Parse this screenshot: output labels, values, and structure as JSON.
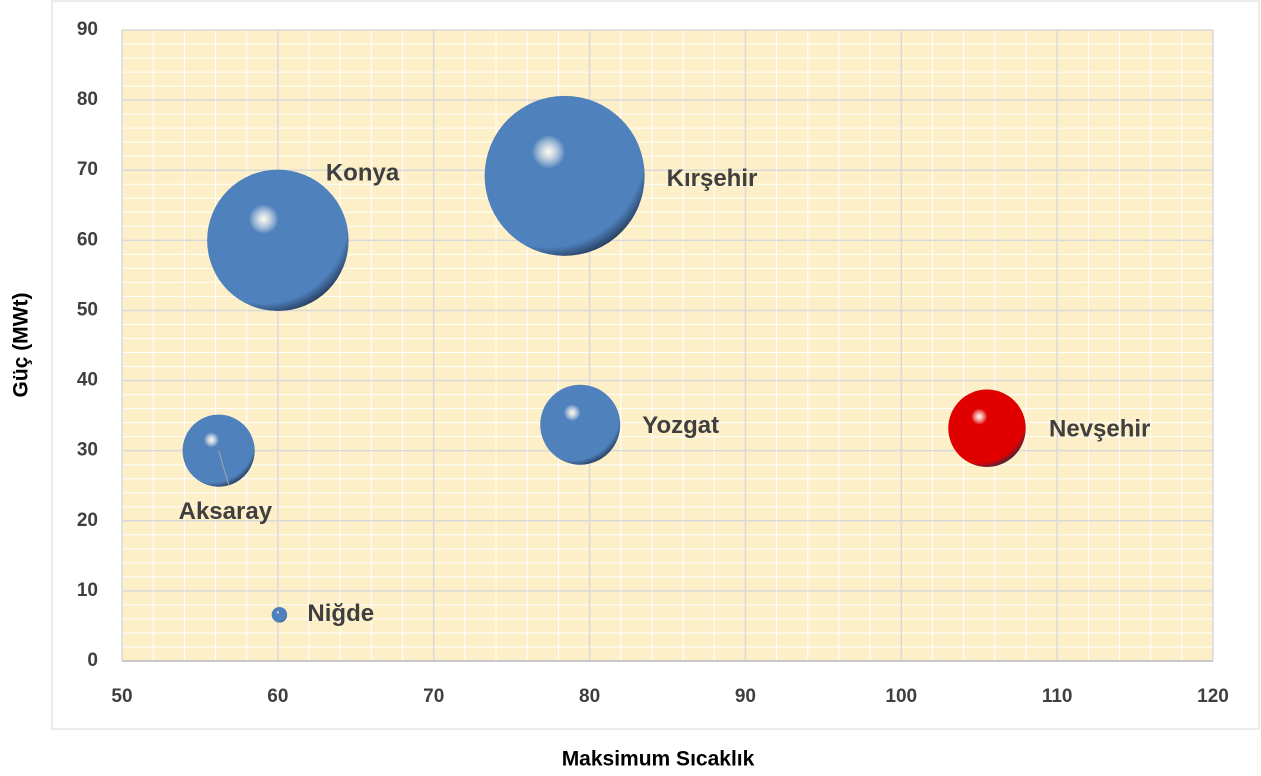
{
  "chart_data": {
    "type": "bubble",
    "x_label": "Maksimum Sıcaklık",
    "y_label": "Güç (MWt)",
    "labels": [
      "Konya",
      "Kırşehir",
      "Aksaray",
      "Yozgat",
      "Nevşehir",
      "Niğde"
    ],
    "x": [
      60,
      78.4,
      56.2,
      79.4,
      105.5,
      60.1
    ],
    "values": [
      60,
      69.2,
      30,
      33.7,
      33.2,
      6.6
    ],
    "sizes": [
      50,
      64,
      13,
      16,
      15,
      0.6
    ],
    "colors": [
      "#4f81bd",
      "#4f81bd",
      "#4f81bd",
      "#4f81bd",
      "#e00000",
      "#4f81bd"
    ],
    "xlim": [
      50,
      120
    ],
    "xticks": [
      50,
      60,
      70,
      80,
      90,
      100,
      110,
      120
    ],
    "ylim": [
      0,
      90
    ],
    "yticks": [
      0,
      10,
      20,
      30,
      40,
      50,
      60,
      70,
      80,
      90
    ],
    "grid": true,
    "minor_step_x": 2,
    "minor_step_y": 2,
    "plot_background": "#fdefc8"
  }
}
